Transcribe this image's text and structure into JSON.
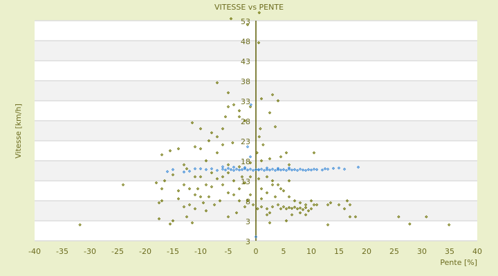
{
  "chart_data": {
    "type": "scatter",
    "title": "VITESSE vs PENTE",
    "xlabel": "Pente [%]",
    "ylabel": "Vitesse [km/h]",
    "xlim": [
      -40,
      40
    ],
    "ylim": [
      -2,
      53
    ],
    "x_ticks": [
      "-40",
      "-35",
      "-30",
      "-25",
      "-20",
      "-15",
      "-10",
      "-5",
      "0",
      "5",
      "10",
      "15",
      "20",
      "25",
      "30",
      "35",
      "40"
    ],
    "y_ticks": [
      "53",
      "48",
      "43",
      "38",
      "33",
      "28",
      "23",
      "18",
      "13",
      "8",
      "3",
      "3"
    ],
    "grid": true,
    "colors": {
      "series1": "#6b7000",
      "series2": "#3a8ad8",
      "band": "#f2f2f2",
      "bg": "#ebf0cc",
      "axis": "#5a5a00"
    },
    "series": [
      {
        "name": "points",
        "color": "#6b7000",
        "points": [
          [
            -4.5,
            53.5
          ],
          [
            -1.5,
            52
          ],
          [
            0.5,
            47.5
          ],
          [
            0.6,
            55
          ],
          [
            -7,
            37.5
          ],
          [
            -5,
            35
          ],
          [
            3,
            34.5
          ],
          [
            4,
            33
          ],
          [
            1,
            33.5
          ],
          [
            -5,
            31.5
          ],
          [
            -4,
            32
          ],
          [
            -3,
            29
          ],
          [
            -5.5,
            29
          ],
          [
            -10,
            26
          ],
          [
            -11.5,
            27.5
          ],
          [
            -6,
            26
          ],
          [
            -8,
            25
          ],
          [
            -7,
            24
          ],
          [
            2.5,
            30
          ],
          [
            3.5,
            26.5
          ],
          [
            -3,
            30.5
          ],
          [
            -1,
            31.5
          ],
          [
            -2,
            28
          ],
          [
            0.8,
            26
          ],
          [
            0.6,
            24
          ],
          [
            1.3,
            22
          ],
          [
            0.2,
            20
          ],
          [
            -6,
            22
          ],
          [
            -8.5,
            23
          ],
          [
            -4.2,
            22.5
          ],
          [
            -11,
            21.5
          ],
          [
            -10,
            21
          ],
          [
            -14,
            21
          ],
          [
            -15.5,
            20.5
          ],
          [
            -17,
            19.5
          ],
          [
            5.5,
            20
          ],
          [
            4.5,
            19
          ],
          [
            10.5,
            20
          ],
          [
            -7,
            20
          ],
          [
            -9,
            18
          ],
          [
            -5,
            17
          ],
          [
            -13,
            17
          ],
          [
            -12.5,
            16
          ],
          [
            -15,
            14.5
          ],
          [
            -16.5,
            13
          ],
          [
            -17,
            11
          ],
          [
            -24,
            12
          ],
          [
            -18,
            12.5
          ],
          [
            -14,
            10.5
          ],
          [
            -12,
            11
          ],
          [
            -11,
            9.5
          ],
          [
            -10,
            9
          ],
          [
            -9,
            12
          ],
          [
            -8,
            11.5
          ],
          [
            -7,
            13.5
          ],
          [
            -6,
            12
          ],
          [
            -5,
            10
          ],
          [
            -4,
            13
          ],
          [
            -3,
            11
          ],
          [
            -2,
            12.5
          ],
          [
            -1,
            9.5
          ],
          [
            1,
            11
          ],
          [
            2,
            10
          ],
          [
            3,
            13
          ],
          [
            4,
            12
          ],
          [
            5,
            10.5
          ],
          [
            6,
            9
          ],
          [
            7,
            8
          ],
          [
            8,
            7.5
          ],
          [
            9,
            7
          ],
          [
            10,
            8
          ],
          [
            11,
            7
          ],
          [
            13,
            7
          ],
          [
            13.5,
            7.5
          ],
          [
            15,
            7
          ],
          [
            16,
            6
          ],
          [
            17,
            7
          ],
          [
            16.5,
            8
          ],
          [
            18,
            4
          ],
          [
            17,
            4
          ],
          [
            13,
            2
          ],
          [
            25.8,
            4
          ],
          [
            27.8,
            2.2
          ],
          [
            30.8,
            4
          ],
          [
            34.9,
            2
          ],
          [
            -31.8,
            2
          ],
          [
            -17.5,
            3.5
          ],
          [
            -15.5,
            2.2
          ],
          [
            -15,
            3
          ],
          [
            -12.5,
            4
          ],
          [
            -11.5,
            2.5
          ],
          [
            -17,
            8
          ],
          [
            -17.5,
            7.5
          ],
          [
            -14,
            8.5
          ],
          [
            -13,
            6.5
          ],
          [
            -12,
            7
          ],
          [
            -11,
            6
          ],
          [
            -9,
            5.5
          ],
          [
            -5,
            4
          ],
          [
            -3.5,
            5
          ],
          [
            -2,
            6.5
          ],
          [
            -1.5,
            8
          ],
          [
            -0.5,
            7
          ],
          [
            0.3,
            6
          ],
          [
            1,
            6.5
          ],
          [
            2,
            6
          ],
          [
            2.5,
            5
          ],
          [
            3,
            6.5
          ],
          [
            4,
            7
          ],
          [
            4.5,
            6
          ],
          [
            5,
            6.5
          ],
          [
            5.5,
            6
          ],
          [
            6,
            6.3
          ],
          [
            6.5,
            6.1
          ],
          [
            7,
            6.4
          ],
          [
            7.5,
            6
          ],
          [
            8,
            6.2
          ],
          [
            8.5,
            5.8
          ],
          [
            9,
            6.3
          ],
          [
            9.5,
            5.5
          ],
          [
            10,
            6
          ],
          [
            10.5,
            7
          ],
          [
            6.5,
            4.5
          ],
          [
            8,
            5
          ],
          [
            9,
            4.5
          ],
          [
            5.5,
            3
          ],
          [
            2,
            4.5
          ],
          [
            2.5,
            2.5
          ],
          [
            1,
            8.5
          ],
          [
            3.5,
            9
          ],
          [
            4.5,
            11
          ],
          [
            6,
            13
          ],
          [
            -6.5,
            8
          ],
          [
            -7.5,
            7
          ],
          [
            -8.5,
            9
          ],
          [
            -9.5,
            7.5
          ],
          [
            -10.5,
            11
          ],
          [
            -3,
            8
          ],
          [
            -4,
            9.5
          ],
          [
            -6,
            14
          ],
          [
            -2.5,
            14
          ],
          [
            -1,
            14
          ],
          [
            0.5,
            13.5
          ],
          [
            2,
            14
          ],
          [
            3,
            12
          ],
          [
            -10,
            14
          ],
          [
            -8,
            15
          ],
          [
            -5,
            15
          ],
          [
            -3,
            16.5
          ],
          [
            -1,
            17.5
          ],
          [
            6,
            17
          ],
          [
            1,
            18
          ],
          [
            2.5,
            18.5
          ],
          [
            -13,
            12
          ],
          [
            -11,
            14
          ]
        ]
      },
      {
        "name": "points-2",
        "color": "#3a8ad8",
        "points": [
          [
            -10,
            16
          ],
          [
            -9,
            15.8
          ],
          [
            -8,
            16
          ],
          [
            -7,
            15.6
          ],
          [
            -6,
            15.9
          ],
          [
            -5.5,
            15.7
          ],
          [
            -5,
            16.1
          ],
          [
            -4.5,
            15.8
          ],
          [
            -4,
            15.6
          ],
          [
            -3.5,
            15.9
          ],
          [
            -3,
            15.7
          ],
          [
            -2.5,
            15.8
          ],
          [
            -2,
            16
          ],
          [
            -1.5,
            15.7
          ],
          [
            -1,
            15.9
          ],
          [
            -0.5,
            15.6
          ],
          [
            0,
            15.8
          ],
          [
            0.5,
            15.7
          ],
          [
            1,
            15.9
          ],
          [
            1.5,
            15.6
          ],
          [
            2,
            15.8
          ],
          [
            2.5,
            15.7
          ],
          [
            3,
            15.9
          ],
          [
            3.5,
            15.6
          ],
          [
            4,
            15.8
          ],
          [
            4.5,
            15.7
          ],
          [
            5,
            15.8
          ],
          [
            5.5,
            15.6
          ],
          [
            6,
            15.9
          ],
          [
            6.5,
            15.7
          ],
          [
            7,
            15.8
          ],
          [
            7.5,
            15.6
          ],
          [
            8,
            15.9
          ],
          [
            8.5,
            15.7
          ],
          [
            9,
            15.6
          ],
          [
            9.5,
            15.8
          ],
          [
            10,
            15.7
          ],
          [
            10.5,
            15.9
          ],
          [
            11,
            15.8
          ],
          [
            12,
            15.7
          ],
          [
            12.5,
            16
          ],
          [
            13,
            15.9
          ],
          [
            14,
            16.1
          ],
          [
            15,
            16.2
          ],
          [
            16,
            15.9
          ],
          [
            18.5,
            16.4
          ],
          [
            -16,
            15.3
          ],
          [
            -13,
            15.2
          ],
          [
            -11,
            16
          ],
          [
            -12,
            15.4
          ],
          [
            -15,
            15.8
          ],
          [
            -1,
            19
          ],
          [
            -1.5,
            21.5
          ],
          [
            -0.9,
            32
          ],
          [
            0.5,
            15.8
          ],
          [
            -2,
            16.3
          ],
          [
            -4,
            16.4
          ],
          [
            -6,
            16.5
          ],
          [
            2,
            16.2
          ],
          [
            4,
            16.1
          ],
          [
            6,
            16.2
          ],
          [
            0,
            -1
          ]
        ]
      }
    ]
  }
}
